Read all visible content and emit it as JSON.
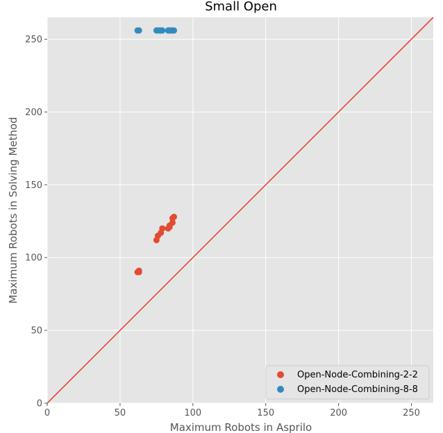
{
  "chart_data": {
    "type": "scatter",
    "title": "Small Open",
    "xlabel": "Maximum Robots in Asprilo",
    "ylabel": "Maximum Robots in Solving Method",
    "xlim": [
      0,
      265
    ],
    "ylim": [
      0,
      265
    ],
    "xticks": [
      0,
      50,
      100,
      150,
      200,
      250
    ],
    "yticks": [
      0,
      50,
      100,
      150,
      200,
      250
    ],
    "grid": true,
    "legend_position": "lower-right",
    "reference_line": {
      "from": [
        0,
        0
      ],
      "to": [
        265,
        265
      ],
      "color": "#E24A33"
    },
    "series": [
      {
        "name": "Open-Node-Combining-2-2",
        "color": "#E24A33",
        "points": [
          [
            62,
            90
          ],
          [
            63,
            90
          ],
          [
            63,
            91
          ],
          [
            75,
            112
          ],
          [
            76,
            115
          ],
          [
            78,
            117
          ],
          [
            79,
            120
          ],
          [
            83,
            120
          ],
          [
            84,
            121
          ],
          [
            84,
            122
          ],
          [
            86,
            124
          ],
          [
            86,
            127
          ],
          [
            87,
            128
          ]
        ]
      },
      {
        "name": "Open-Node-Combining-8-8",
        "color": "#348ABD",
        "points": [
          [
            62,
            256
          ],
          [
            63,
            256
          ],
          [
            75,
            256
          ],
          [
            76,
            256
          ],
          [
            77,
            256
          ],
          [
            78,
            256
          ],
          [
            79,
            256
          ],
          [
            83,
            256
          ],
          [
            84,
            256
          ],
          [
            85,
            256
          ],
          [
            86,
            256
          ],
          [
            87,
            256
          ]
        ]
      }
    ]
  }
}
